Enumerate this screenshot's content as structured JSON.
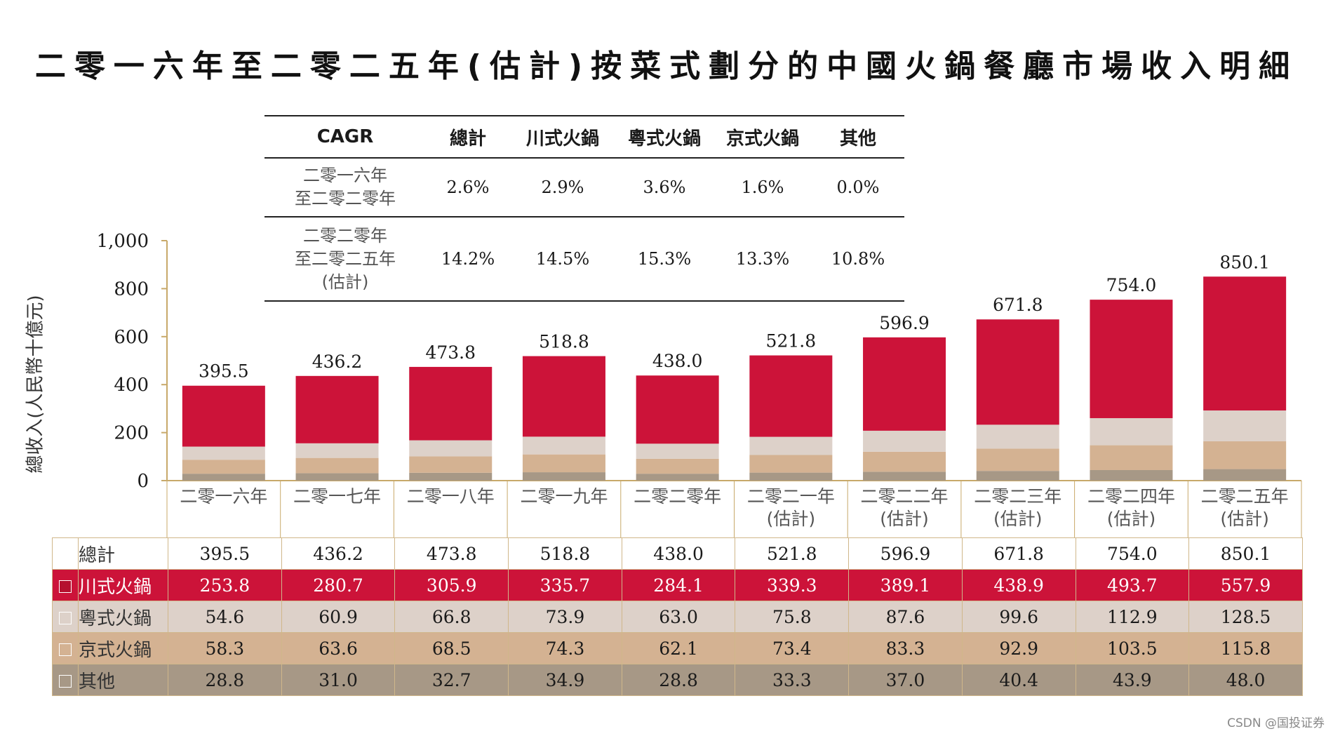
{
  "title": "二零一六年至二零二五年(估計)按菜式劃分的中國火鍋餐廳市場收入明細",
  "cagr_table": {
    "headers": [
      "CAGR",
      "總計",
      "川式火鍋",
      "粵式火鍋",
      "京式火鍋",
      "其他"
    ],
    "rows": [
      {
        "label_lines": [
          "二零一六年",
          "至二零二零年"
        ],
        "values": [
          "2.6%",
          "2.9%",
          "3.6%",
          "1.6%",
          "0.0%"
        ]
      },
      {
        "label_lines": [
          "二零二零年",
          "至二零二五年",
          "(估計)"
        ],
        "values": [
          "14.2%",
          "14.5%",
          "15.3%",
          "13.3%",
          "10.8%"
        ]
      }
    ]
  },
  "colors": {
    "sichuan": "#cc1339",
    "cantonese": "#ddd1c9",
    "beijing": "#d4b292",
    "other": "#a79886",
    "axis": "#c8a96a",
    "totals_row": "#ffffff"
  },
  "chart_data": {
    "type": "bar",
    "stacked": true,
    "title": "二零一六年至二零二五年(估計)按菜式劃分的中國火鍋餐廳市場收入明細",
    "ylabel": "總收入(人民幣十億元)",
    "xlabel": "",
    "ylim": [
      0,
      1000
    ],
    "yticks": [
      0,
      200,
      400,
      600,
      800,
      1000
    ],
    "ytick_labels": [
      "0",
      "200",
      "400",
      "600",
      "800",
      "1,000"
    ],
    "categories": [
      {
        "line1": "二零一六年",
        "line2": ""
      },
      {
        "line1": "二零一七年",
        "line2": ""
      },
      {
        "line1": "二零一八年",
        "line2": ""
      },
      {
        "line1": "二零一九年",
        "line2": ""
      },
      {
        "line1": "二零二零年",
        "line2": ""
      },
      {
        "line1": "二零二一年",
        "line2": "(估計)"
      },
      {
        "line1": "二零二二年",
        "line2": "(估計)"
      },
      {
        "line1": "二零二三年",
        "line2": "(估計)"
      },
      {
        "line1": "二零二四年",
        "line2": "(估計)"
      },
      {
        "line1": "二零二五年",
        "line2": "(估計)"
      }
    ],
    "totals": [
      395.5,
      436.2,
      473.8,
      518.8,
      438.0,
      521.8,
      596.9,
      671.8,
      754.0,
      850.1
    ],
    "total_labels": [
      "395.5",
      "436.2",
      "473.8",
      "518.8",
      "438.0",
      "521.8",
      "596.9",
      "671.8",
      "754.0",
      "850.1"
    ],
    "series": [
      {
        "key": "other",
        "name": "其他",
        "values": [
          28.8,
          31.0,
          32.7,
          34.9,
          28.8,
          33.3,
          37.0,
          40.4,
          43.9,
          48.0
        ],
        "labels": [
          "28.8",
          "31.0",
          "32.7",
          "34.9",
          "28.8",
          "33.3",
          "37.0",
          "40.4",
          "43.9",
          "48.0"
        ]
      },
      {
        "key": "beijing",
        "name": "京式火鍋",
        "values": [
          58.3,
          63.6,
          68.5,
          74.3,
          62.1,
          73.4,
          83.3,
          92.9,
          103.5,
          115.8
        ],
        "labels": [
          "58.3",
          "63.6",
          "68.5",
          "74.3",
          "62.1",
          "73.4",
          "83.3",
          "92.9",
          "103.5",
          "115.8"
        ]
      },
      {
        "key": "cantonese",
        "name": "粵式火鍋",
        "values": [
          54.6,
          60.9,
          66.8,
          73.9,
          63.0,
          75.8,
          87.6,
          99.6,
          112.9,
          128.5
        ],
        "labels": [
          "54.6",
          "60.9",
          "66.8",
          "73.9",
          "63.0",
          "75.8",
          "87.6",
          "99.6",
          "112.9",
          "128.5"
        ]
      },
      {
        "key": "sichuan",
        "name": "川式火鍋",
        "values": [
          253.8,
          280.7,
          305.9,
          335.7,
          284.1,
          339.3,
          389.1,
          438.9,
          493.7,
          557.9
        ],
        "labels": [
          "253.8",
          "280.7",
          "305.9",
          "335.7",
          "284.1",
          "339.3",
          "389.1",
          "438.9",
          "493.7",
          "557.9"
        ]
      }
    ],
    "table_rows": [
      {
        "key": "total",
        "name": "總計"
      },
      {
        "key": "sichuan",
        "name": "川式火鍋"
      },
      {
        "key": "cantonese",
        "name": "粵式火鍋"
      },
      {
        "key": "beijing",
        "name": "京式火鍋"
      },
      {
        "key": "other",
        "name": "其他"
      }
    ]
  },
  "credit": "CSDN @国投证券"
}
